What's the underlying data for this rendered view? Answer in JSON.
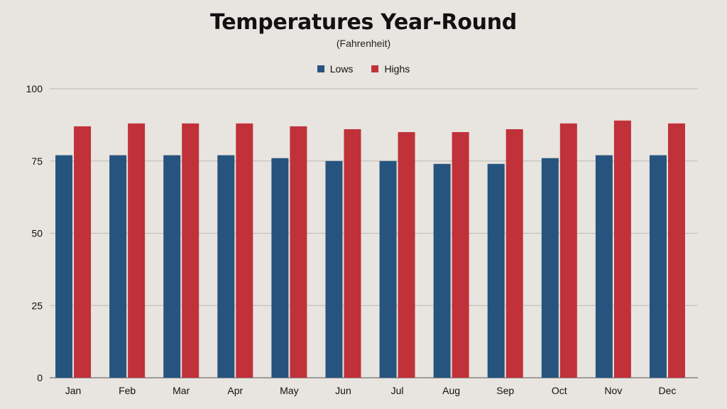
{
  "chart_data": {
    "type": "bar",
    "title": "Temperatures Year-Round",
    "subtitle": "(Fahrenheit)",
    "xlabel": "",
    "ylabel": "",
    "categories": [
      "Jan",
      "Feb",
      "Mar",
      "Apr",
      "May",
      "Jun",
      "Jul",
      "Aug",
      "Sep",
      "Oct",
      "Nov",
      "Dec"
    ],
    "series": [
      {
        "name": "Lows",
        "color": "#27547f",
        "values": [
          77,
          77,
          77,
          77,
          76,
          75,
          75,
          74,
          74,
          76,
          77,
          77
        ]
      },
      {
        "name": "Highs",
        "color": "#c0313a",
        "values": [
          87,
          88,
          88,
          88,
          87,
          86,
          85,
          85,
          86,
          88,
          89,
          88
        ]
      }
    ],
    "ylim": [
      0,
      100
    ],
    "yticks": [
      0,
      25,
      50,
      75,
      100
    ],
    "grid": true,
    "legend_position": "top-center"
  }
}
